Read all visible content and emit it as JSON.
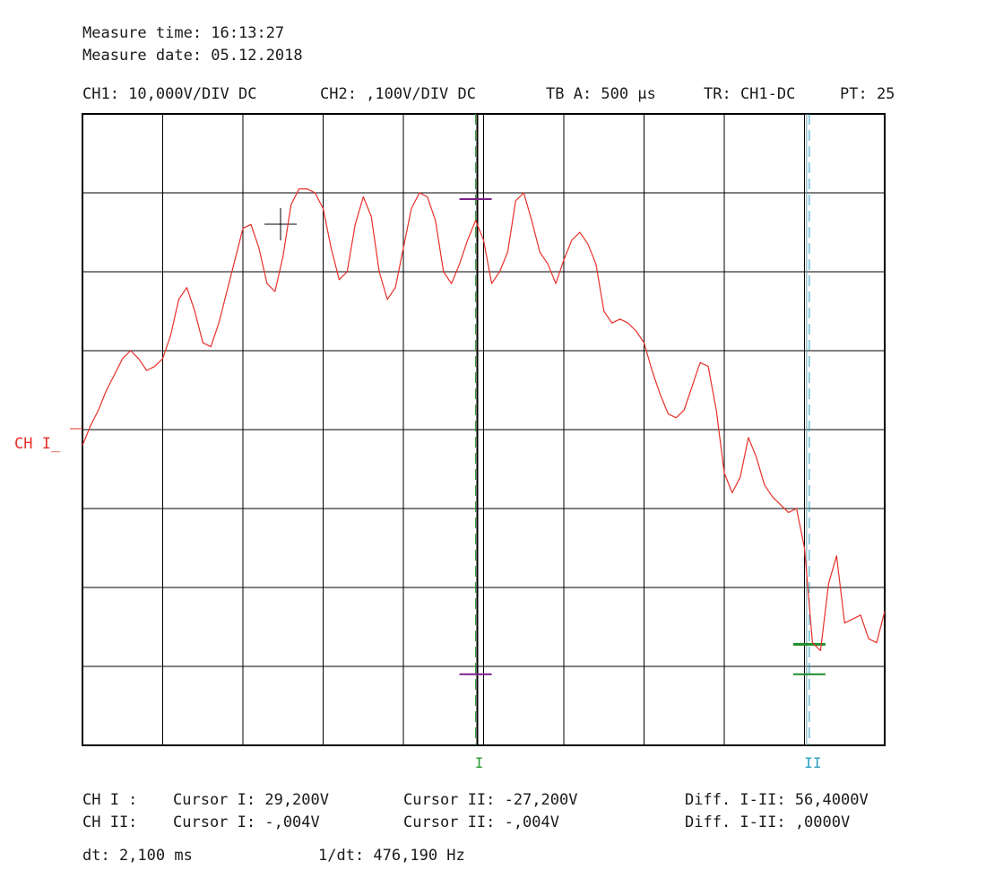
{
  "header": {
    "measure_time": "Measure time: 16:13:27",
    "measure_date": "Measure date: 05.12.2018"
  },
  "settings": {
    "ch1": "CH1: 10,000V/DIV DC",
    "ch2": "CH2: ,100V/DIV DC",
    "timebase": "TB A: 500 µs",
    "trigger": "TR: CH1-DC",
    "pretrigger": "PT: 25"
  },
  "channel_marker": "CH I",
  "cursor_labels": {
    "cursor_1": "I",
    "cursor_2": "II"
  },
  "readouts": {
    "ch1_label": "CH I :",
    "ch1_cursor1": "Cursor I: 29,200V",
    "ch1_cursor2": "Cursor II: -27,200V",
    "ch1_diff": "Diff. I-II: 56,4000V",
    "ch2_label": "CH II:",
    "ch2_cursor1": "Cursor I: -,004V",
    "ch2_cursor2": "Cursor II: -,004V",
    "ch2_diff": "Diff. I-II: ,0000V",
    "dt": "dt: 2,100 ms",
    "inv_dt": "1/dt: 476,190 Hz"
  },
  "colors": {
    "trace": "#e8302a",
    "grid": "#000000",
    "cursor_1": "#2e9a35",
    "cursor_2": "#2a9fbf",
    "cursor_1_marker": "#7a1f8a",
    "cursor_2_marker": "#1e8c2a",
    "ch_marker": "#e8302a"
  },
  "chart_data": {
    "type": "line",
    "x_unit": "div",
    "y_unit": "V",
    "xlim": [
      0,
      10
    ],
    "ylim": [
      -40,
      40
    ],
    "grid": true,
    "x_divisions": 10,
    "y_divisions": 8,
    "cursor_1_x": 4.9,
    "cursor_2_x": 9.06,
    "cursor_1_values": [
      29.2,
      -31.0
    ],
    "cursor_2_values": [
      -27.2,
      -31.0
    ],
    "series": [
      {
        "x": [
          0,
          0.1,
          0.2,
          0.3,
          0.4,
          0.5,
          0.6,
          0.7,
          0.8,
          0.9,
          1.0,
          1.1,
          1.2,
          1.3,
          1.4,
          1.5,
          1.6,
          1.7,
          1.8,
          1.9,
          2.0,
          2.1,
          2.2,
          2.3,
          2.4,
          2.5,
          2.6,
          2.7,
          2.8,
          2.9,
          3.0,
          3.1,
          3.2,
          3.3,
          3.4,
          3.5,
          3.6,
          3.7,
          3.8,
          3.9,
          4.0,
          4.1,
          4.2,
          4.3,
          4.4,
          4.5,
          4.6,
          4.7,
          4.8,
          4.9,
          5.0,
          5.1,
          5.2,
          5.3,
          5.4,
          5.5,
          5.6,
          5.7,
          5.8,
          5.9,
          6.0,
          6.1,
          6.2,
          6.3,
          6.4,
          6.5,
          6.6,
          6.7,
          6.8,
          6.9,
          7.0,
          7.1,
          7.2,
          7.3,
          7.4,
          7.5,
          7.6,
          7.7,
          7.8,
          7.9,
          8.0,
          8.1,
          8.2,
          8.3,
          8.4,
          8.5,
          8.6,
          8.7,
          8.8,
          8.9,
          9.0,
          9.1,
          9.2,
          9.3,
          9.4,
          9.5,
          9.6,
          9.7,
          9.8,
          9.9,
          10.0
        ],
        "y": [
          -2.0,
          0.5,
          2.5,
          5.0,
          7.0,
          9.0,
          10.0,
          9.0,
          7.5,
          8.0,
          9.0,
          12.0,
          16.5,
          18.0,
          15.0,
          11.0,
          10.5,
          13.5,
          17.5,
          21.5,
          25.5,
          26.0,
          23.0,
          18.5,
          17.5,
          22.0,
          28.5,
          30.5,
          30.5,
          30.0,
          28.0,
          23.0,
          19.0,
          20.0,
          26.0,
          29.5,
          27.0,
          20.0,
          16.5,
          18.0,
          23.0,
          28.0,
          30.0,
          29.5,
          26.5,
          20.0,
          18.5,
          21.0,
          24.0,
          26.5,
          24.0,
          18.5,
          20.0,
          22.5,
          29.0,
          30.0,
          26.5,
          22.5,
          21.0,
          18.5,
          21.5,
          24.0,
          25.0,
          23.5,
          21.0,
          15.0,
          13.5,
          14.0,
          13.5,
          12.5,
          11.0,
          7.5,
          4.5,
          2.0,
          1.5,
          2.5,
          5.5,
          8.5,
          8.0,
          2.5,
          -5.5,
          -8.0,
          -6.0,
          -1.0,
          -3.5,
          -7.0,
          -8.5,
          -9.5,
          -10.5,
          -10.0,
          -15.0,
          -27.0,
          -28.0,
          -19.5,
          -16.0,
          -24.5,
          -24.0,
          -23.5,
          -26.5,
          -27.0,
          -23.0
        ]
      }
    ]
  }
}
